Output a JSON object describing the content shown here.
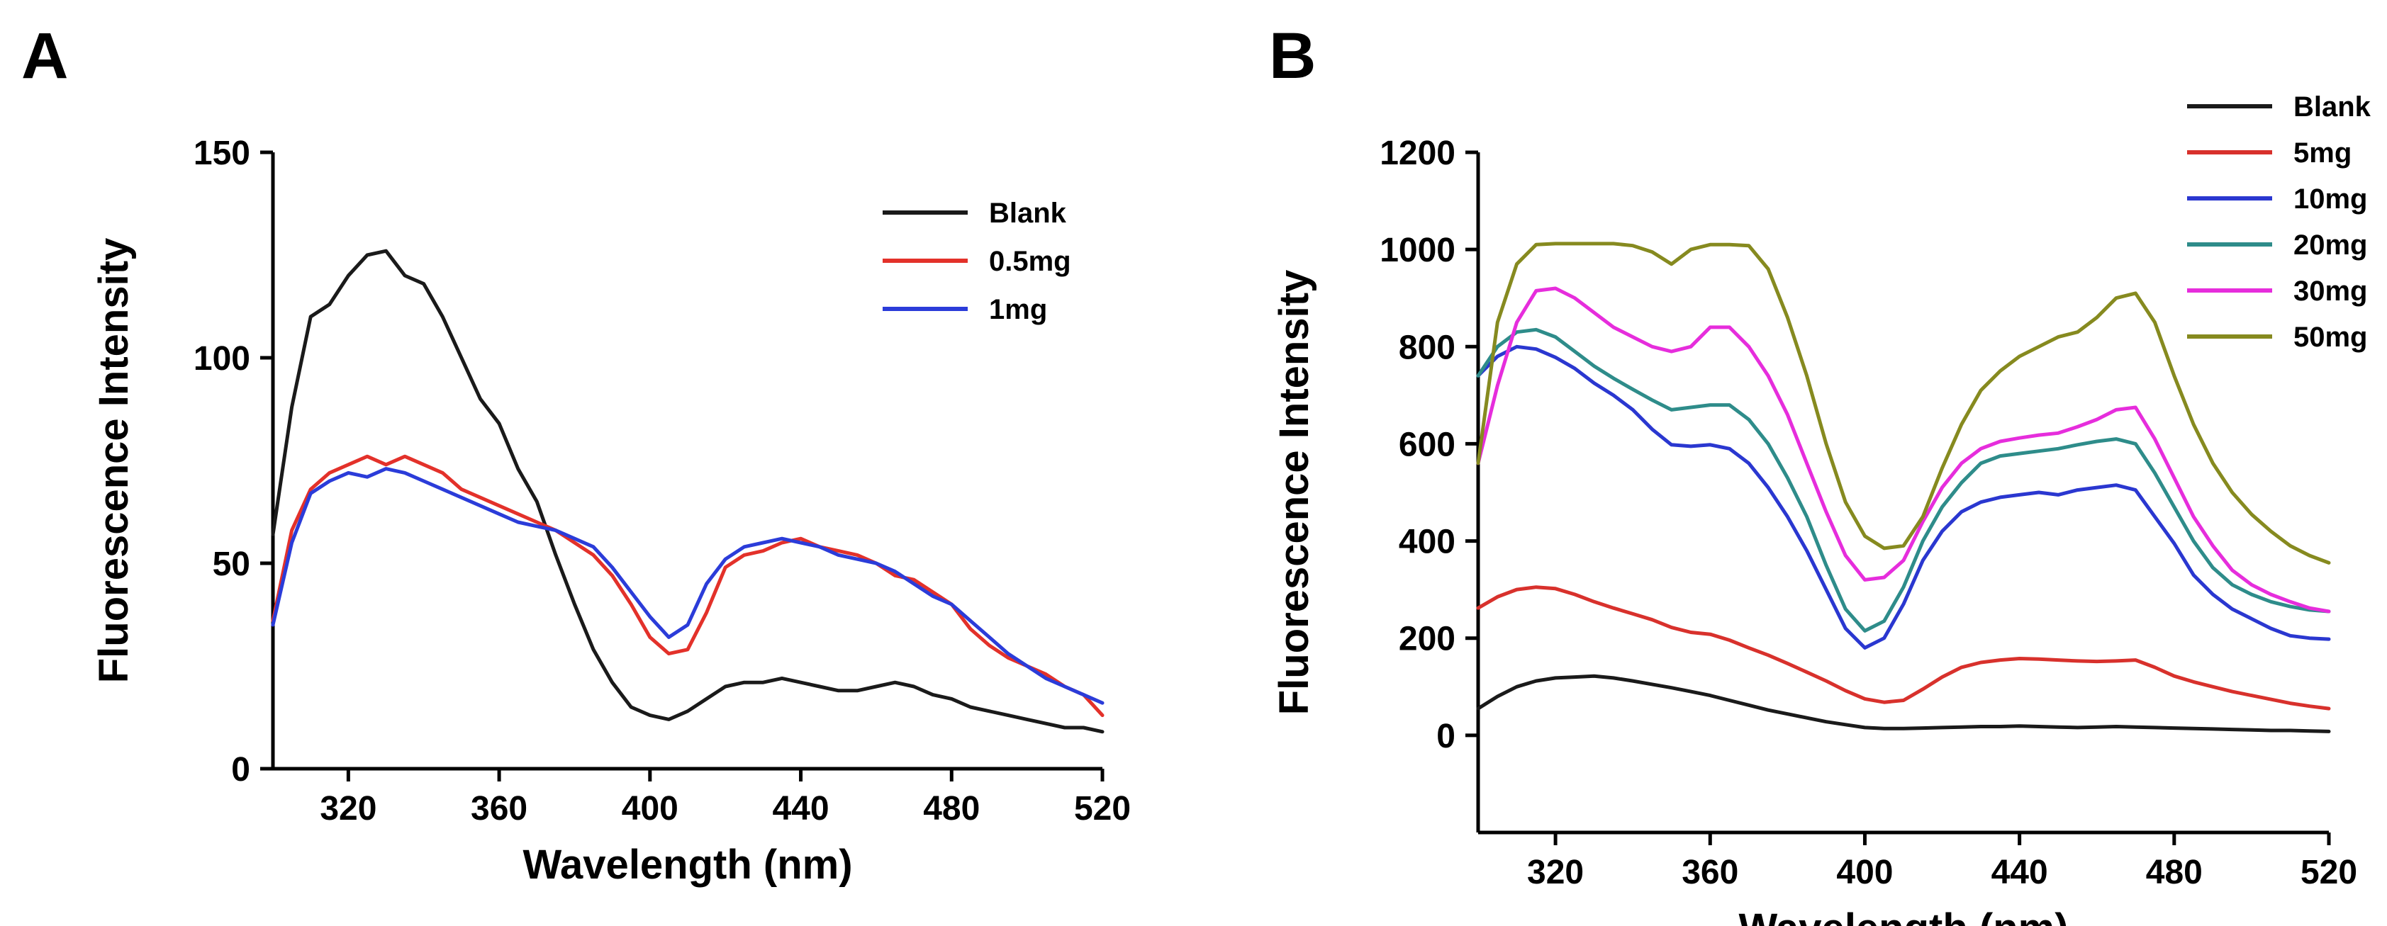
{
  "chart_data": [
    {
      "panel": "A",
      "type": "line",
      "xlabel": "Wavelength (nm)",
      "ylabel": "Fluorescence Intensity",
      "xlim": [
        300,
        520
      ],
      "ylim": [
        0,
        150
      ],
      "xticks": [
        320,
        360,
        400,
        440,
        480,
        520
      ],
      "yticks": [
        0,
        50,
        100,
        150
      ],
      "x": [
        300,
        305,
        310,
        315,
        320,
        325,
        330,
        335,
        340,
        345,
        350,
        355,
        360,
        365,
        370,
        375,
        380,
        385,
        390,
        395,
        400,
        405,
        410,
        415,
        420,
        425,
        430,
        435,
        440,
        445,
        450,
        455,
        460,
        465,
        470,
        475,
        480,
        485,
        490,
        495,
        500,
        505,
        510,
        515,
        520
      ],
      "legend_position": "top-right",
      "series": [
        {
          "name": "Blank",
          "color": "#1a1a1a",
          "values": [
            57,
            88,
            110,
            113,
            120,
            125,
            126,
            120,
            118,
            110,
            100,
            90,
            84,
            73,
            65,
            52,
            40,
            29,
            21,
            15,
            13,
            12,
            14,
            17,
            20,
            21,
            21,
            22,
            21,
            20,
            19,
            19,
            20,
            21,
            20,
            18,
            17,
            15,
            14,
            13,
            12,
            11,
            10,
            10,
            9
          ]
        },
        {
          "name": "0.5mg",
          "color": "#e3312a",
          "values": [
            36,
            58,
            68,
            72,
            74,
            76,
            74,
            76,
            74,
            72,
            68,
            66,
            64,
            62,
            60,
            58,
            55,
            52,
            47,
            40,
            32,
            28,
            29,
            38,
            49,
            52,
            53,
            55,
            56,
            54,
            53,
            52,
            50,
            47,
            46,
            43,
            40,
            34,
            30,
            27,
            25,
            23,
            20,
            18,
            13
          ]
        },
        {
          "name": "1mg",
          "color": "#2b3cd9",
          "values": [
            35,
            55,
            67,
            70,
            72,
            71,
            73,
            72,
            70,
            68,
            66,
            64,
            62,
            60,
            59,
            58,
            56,
            54,
            49,
            43,
            37,
            32,
            35,
            45,
            51,
            54,
            55,
            56,
            55,
            54,
            52,
            51,
            50,
            48,
            45,
            42,
            40,
            36,
            32,
            28,
            25,
            22,
            20,
            18,
            16
          ]
        }
      ]
    },
    {
      "panel": "B",
      "type": "line",
      "xlabel": "Wavelength (nm)",
      "ylabel": "Fluorescence Intensity",
      "xlim": [
        300,
        520
      ],
      "ylim": [
        -200,
        1200
      ],
      "xticks": [
        320,
        360,
        400,
        440,
        480,
        520
      ],
      "yticks": [
        0,
        200,
        400,
        600,
        800,
        1000,
        1200
      ],
      "x": [
        300,
        305,
        310,
        315,
        320,
        325,
        330,
        335,
        340,
        345,
        350,
        355,
        360,
        365,
        370,
        375,
        380,
        385,
        390,
        395,
        400,
        405,
        410,
        415,
        420,
        425,
        430,
        435,
        440,
        445,
        450,
        455,
        460,
        465,
        470,
        475,
        480,
        485,
        490,
        495,
        500,
        505,
        510,
        515,
        520
      ],
      "legend_position": "top-right",
      "series": [
        {
          "name": "Blank",
          "color": "#1a1a1a",
          "values": [
            55,
            80,
            100,
            112,
            118,
            120,
            122,
            118,
            112,
            105,
            98,
            90,
            82,
            72,
            62,
            52,
            44,
            36,
            28,
            22,
            16,
            14,
            14,
            15,
            16,
            17,
            18,
            18,
            19,
            18,
            17,
            16,
            17,
            18,
            17,
            16,
            15,
            14,
            13,
            12,
            11,
            10,
            10,
            9,
            8
          ]
        },
        {
          "name": "5mg",
          "color": "#d8312c",
          "values": [
            262,
            285,
            300,
            305,
            302,
            290,
            275,
            262,
            250,
            238,
            222,
            212,
            208,
            196,
            180,
            165,
            148,
            130,
            112,
            92,
            75,
            68,
            72,
            95,
            120,
            140,
            150,
            155,
            158,
            157,
            155,
            153,
            152,
            153,
            155,
            140,
            122,
            110,
            100,
            90,
            82,
            74,
            66,
            60,
            55
          ]
        },
        {
          "name": "10mg",
          "color": "#2a37d0",
          "values": [
            740,
            780,
            800,
            795,
            778,
            755,
            725,
            700,
            670,
            630,
            598,
            595,
            598,
            590,
            560,
            510,
            450,
            380,
            300,
            220,
            180,
            200,
            270,
            360,
            420,
            460,
            480,
            490,
            495,
            500,
            495,
            505,
            510,
            515,
            505,
            450,
            395,
            330,
            290,
            260,
            240,
            220,
            205,
            200,
            198
          ]
        },
        {
          "name": "20mg",
          "color": "#2e8c8a",
          "values": [
            740,
            800,
            830,
            835,
            820,
            790,
            760,
            735,
            712,
            690,
            670,
            675,
            680,
            680,
            650,
            600,
            530,
            450,
            350,
            260,
            215,
            235,
            305,
            400,
            470,
            520,
            560,
            575,
            580,
            585,
            590,
            598,
            605,
            610,
            600,
            540,
            470,
            400,
            345,
            310,
            290,
            275,
            265,
            258,
            255
          ]
        },
        {
          "name": "30mg",
          "color": "#e62ddc",
          "values": [
            560,
            720,
            850,
            915,
            920,
            900,
            870,
            840,
            820,
            800,
            790,
            800,
            840,
            840,
            800,
            740,
            660,
            560,
            460,
            370,
            320,
            325,
            360,
            440,
            510,
            560,
            590,
            605,
            612,
            618,
            622,
            635,
            650,
            670,
            675,
            610,
            530,
            450,
            390,
            340,
            310,
            290,
            275,
            262,
            255
          ]
        },
        {
          "name": "50mg",
          "color": "#868a1f",
          "values": [
            560,
            850,
            970,
            1010,
            1012,
            1012,
            1012,
            1012,
            1008,
            995,
            970,
            1000,
            1010,
            1010,
            1008,
            960,
            860,
            740,
            600,
            480,
            410,
            385,
            390,
            450,
            550,
            640,
            710,
            750,
            780,
            800,
            820,
            830,
            860,
            900,
            910,
            850,
            740,
            640,
            560,
            500,
            455,
            420,
            390,
            370,
            355
          ]
        }
      ]
    }
  ],
  "panels": {
    "A": {
      "letter": "A"
    },
    "B": {
      "letter": "B"
    }
  }
}
